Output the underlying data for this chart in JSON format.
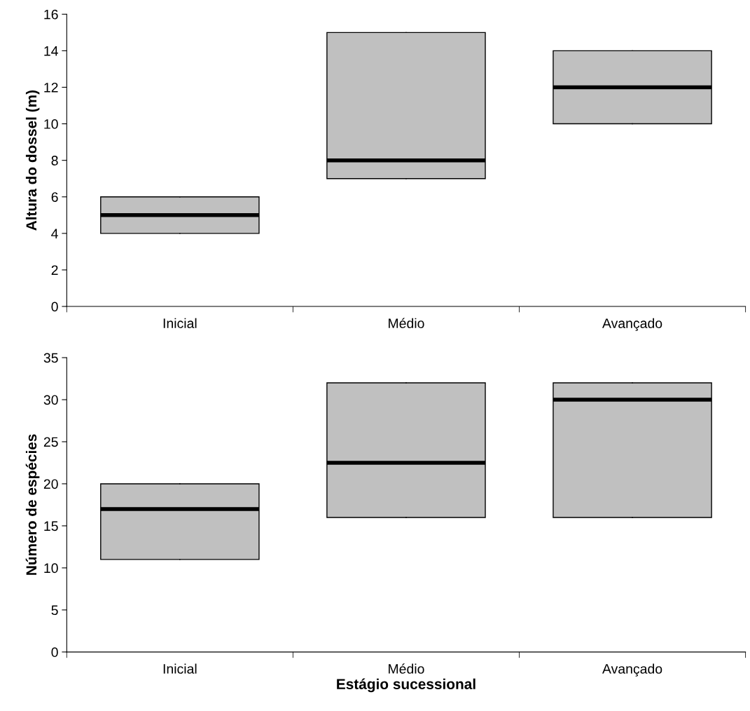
{
  "chart_data": [
    {
      "type": "box",
      "ylabel": "Altura do dossel (m)",
      "categories": [
        "Inicial",
        "Médio",
        "Avançado"
      ],
      "color": "#c0c0c0",
      "ylim": [
        0,
        16
      ],
      "yticks": [
        0,
        2,
        4,
        6,
        8,
        10,
        12,
        14,
        16
      ],
      "grid": false,
      "boxes": [
        {
          "low": 4,
          "q1": 4,
          "median": 5,
          "q3": 6,
          "high": 6
        },
        {
          "low": 7,
          "q1": 7,
          "median": 8,
          "q3": 15,
          "high": 15
        },
        {
          "low": 10,
          "q1": 10,
          "median": 12,
          "q3": 14,
          "high": 14
        }
      ]
    },
    {
      "type": "box",
      "ylabel": "Número de espécies",
      "xlabel": "Estágio sucessional",
      "categories": [
        "Inicial",
        "Médio",
        "Avançado"
      ],
      "color": "#c0c0c0",
      "ylim": [
        0,
        35
      ],
      "yticks": [
        0,
        5,
        10,
        15,
        20,
        25,
        30,
        35
      ],
      "grid": false,
      "boxes": [
        {
          "low": 11,
          "q1": 11,
          "median": 17,
          "q3": 20,
          "high": 20
        },
        {
          "low": 16,
          "q1": 16,
          "median": 22.5,
          "q3": 32,
          "high": 32
        },
        {
          "low": 16,
          "q1": 16,
          "median": 30,
          "q3": 32,
          "high": 32
        }
      ]
    }
  ]
}
